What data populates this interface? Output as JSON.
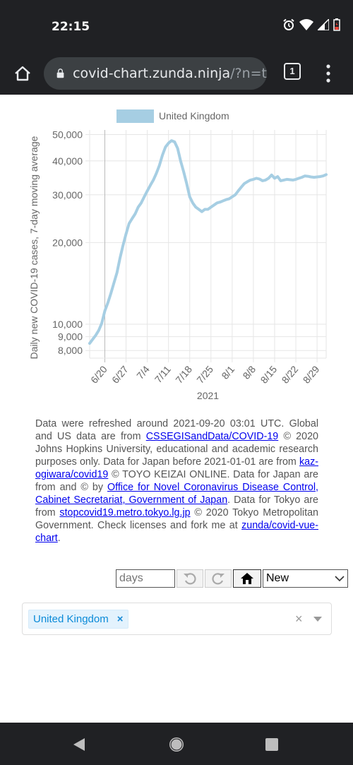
{
  "status_bar": {
    "time": "22:15"
  },
  "browser": {
    "url_host": "covid-chart.zunda.ninja",
    "url_path": "/?n=t",
    "tab_count": "1"
  },
  "chart_data": {
    "type": "line",
    "legend": [
      "United Kingdom"
    ],
    "ylabel": "Daily new COVID-19 cases, 7-day moving average",
    "xlabel": "2021",
    "y_scale": "log",
    "ylim": [
      7500,
      52000
    ],
    "y_ticks": [
      "50,000",
      "40,000",
      "30,000",
      "20,000",
      "10,000",
      "9,000",
      "8,000"
    ],
    "y_tick_values": [
      50000,
      40000,
      30000,
      20000,
      10000,
      9000,
      8000
    ],
    "x_ticks": [
      "6/20",
      "6/27",
      "7/4",
      "7/11",
      "7/18",
      "7/25",
      "8/1",
      "8/8",
      "8/15",
      "8/22",
      "8/29"
    ],
    "x_tick_days": [
      5,
      12,
      19,
      26,
      33,
      40,
      47,
      54,
      61,
      68,
      75
    ],
    "series": [
      {
        "name": "United Kingdom",
        "color": "#a6cee3",
        "x_days": [
          0,
          1,
          2,
          3,
          4,
          5,
          6,
          7,
          8,
          9,
          10,
          11,
          12,
          13,
          14,
          15,
          16,
          17,
          18,
          19,
          20,
          21,
          22,
          23,
          24,
          25,
          26,
          27,
          28,
          29,
          30,
          31,
          32,
          33,
          34,
          35,
          36,
          37,
          38,
          39,
          40,
          41,
          42,
          43,
          44,
          45,
          46,
          47,
          48,
          49,
          50,
          51,
          52,
          53,
          54,
          55,
          56,
          57,
          58,
          59,
          60,
          61,
          62,
          63,
          64,
          65,
          66,
          67,
          68,
          69,
          70,
          71,
          72,
          73,
          74,
          75,
          76,
          77,
          78
        ],
        "values": [
          8500,
          8800,
          9100,
          9500,
          10100,
          11200,
          12000,
          13000,
          14200,
          15500,
          17500,
          19500,
          21500,
          23500,
          24500,
          25500,
          27000,
          28000,
          29500,
          31000,
          32500,
          34000,
          36000,
          38500,
          42000,
          45000,
          46500,
          47500,
          47000,
          44500,
          40000,
          36500,
          33000,
          29500,
          28000,
          27000,
          26500,
          26000,
          26500,
          26500,
          27000,
          27500,
          28000,
          28200,
          28500,
          28800,
          29000,
          29500,
          30000,
          31000,
          32000,
          33000,
          33500,
          34000,
          34200,
          34500,
          34300,
          33800,
          34000,
          34500,
          35500,
          34500,
          35000,
          33800,
          34000,
          34200,
          34100,
          34000,
          34200,
          34500,
          34800,
          35200,
          35100,
          34900,
          34800,
          34900,
          35000,
          35200,
          35600
        ]
      }
    ]
  },
  "notice": {
    "p1": "Data were refreshed around 2021-09-20 03:01 UTC. Global and US data are from ",
    "link1": "CSSEGISandData/COVID-19",
    "p2": " © 2020 Johns Hopkins University, educational and academic research purposes only. Data for Japan before 2021-01-01 are from ",
    "link2": "kaz-ogiwara/covid19",
    "p3": " © TOYO KEIZAI ONLINE. Data for Japan are from and © by ",
    "link3": "Office for Novel Coronavirus Disease Control, Cabinet Secretariat, Government of Japan",
    "p4": ". Data for Tokyo are from ",
    "link4": "stopcovid19.metro.tokyo.lg.jp",
    "p5": " © 2020 Tokyo Metropolitan Government. Check licenses and fork me at ",
    "link5": "zunda/covid-vue-chart",
    "p6": "."
  },
  "controls": {
    "days_placeholder": "days",
    "mode_selected": "New"
  },
  "selector": {
    "selected_tag": "United Kingdom",
    "tag_remove": "×",
    "clear": "×"
  }
}
